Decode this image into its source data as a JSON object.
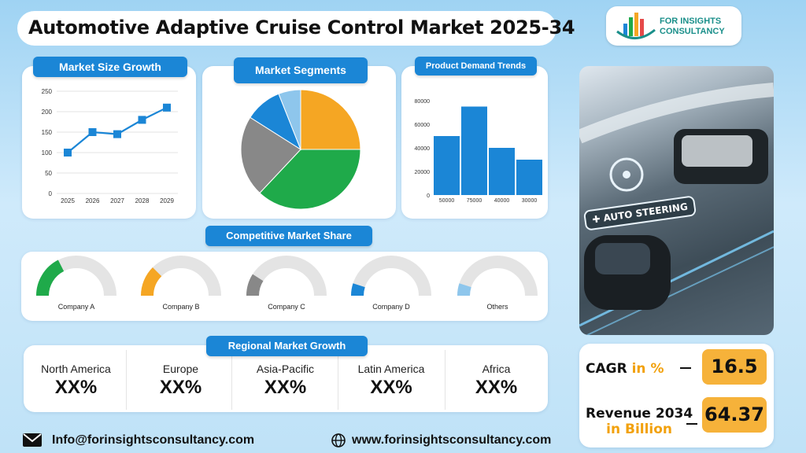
{
  "header": {
    "title": "Automotive Adaptive Cruise Control Market 2025-34"
  },
  "logo": {
    "line1": "FOR INSIGHTS",
    "line2": "CONSULTANCY"
  },
  "panels": {
    "market_size": "Market Size Growth",
    "segments": "Market Segments",
    "demand": "Product Demand Trends",
    "competitive": "Competitive Market Share",
    "regional": "Regional Market Growth"
  },
  "chart_data": [
    {
      "type": "line",
      "x": [
        "2025",
        "2026",
        "2027",
        "2028",
        "2029"
      ],
      "values": [
        100,
        150,
        145,
        180,
        210
      ],
      "ylim": [
        0,
        250
      ],
      "yticks": [
        "0",
        "50",
        "100",
        "150",
        "200",
        "250"
      ],
      "color": "#1b86d6",
      "grid": true
    },
    {
      "type": "pie",
      "values": [
        25,
        37,
        22,
        10,
        6
      ],
      "colors": [
        "#f5a623",
        "#1faa4a",
        "#888888",
        "#1b86d6",
        "#8ec6ec"
      ]
    },
    {
      "type": "bar",
      "categories": [
        "50000",
        "75000",
        "40000",
        "30000"
      ],
      "values": [
        50000,
        75000,
        40000,
        30000
      ],
      "ylim": [
        0,
        80000
      ],
      "yticks": [
        "0",
        "20000",
        "40000",
        "60000",
        "80000"
      ],
      "color": "#1b86d6"
    },
    {
      "type": "gauge",
      "categories": [
        "Company A",
        "Company B",
        "Company C",
        "Company D",
        "Others"
      ],
      "values": [
        0.35,
        0.25,
        0.18,
        0.1,
        0.1
      ],
      "colors": [
        "#1faa4a",
        "#f5a623",
        "#888888",
        "#1b86d6",
        "#8ec6ec"
      ]
    }
  ],
  "regions": [
    {
      "name": "North America",
      "value": "XX%"
    },
    {
      "name": "Europe",
      "value": "XX%"
    },
    {
      "name": "Asia-Pacific",
      "value": "XX%"
    },
    {
      "name": "Latin America",
      "value": "XX%"
    },
    {
      "name": "Africa",
      "value": "XX%"
    }
  ],
  "stats": {
    "cagr_label": "CAGR",
    "cagr_unit": "in %",
    "cagr_value": "16.5",
    "revenue_label": "Revenue 2034",
    "revenue_unit": "in Billion",
    "revenue_value": "64.37"
  },
  "image": {
    "sign_text": "AUTO STEERING"
  },
  "footer": {
    "email": "Info@forinsightsconsultancy.com",
    "website": "www.forinsightsconsultancy.com"
  }
}
